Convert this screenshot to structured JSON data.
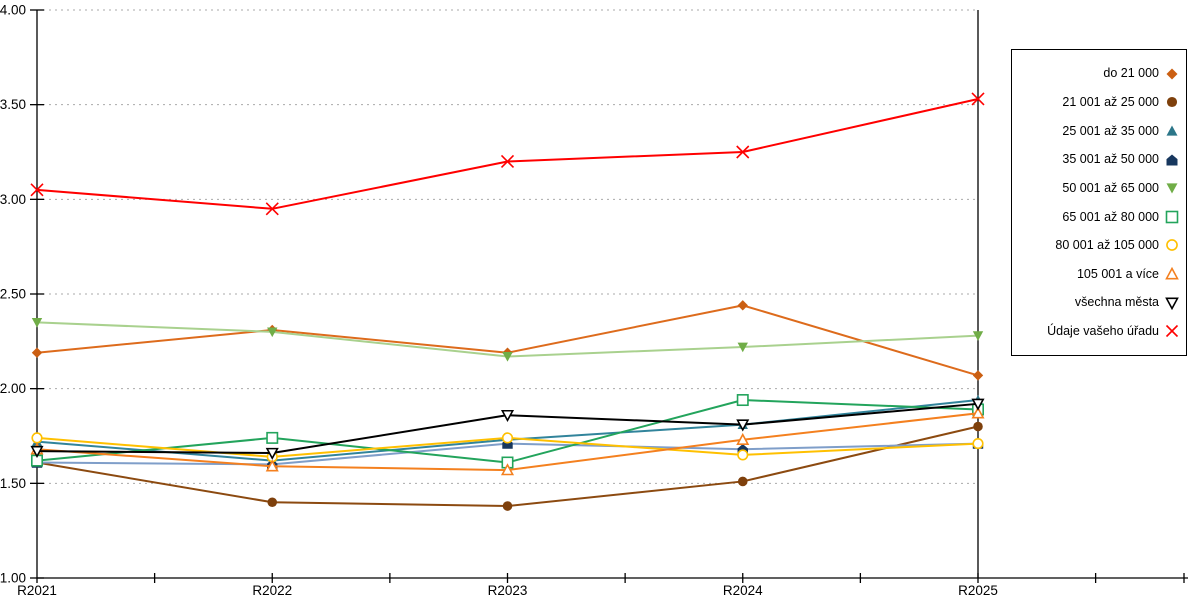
{
  "chart_data": {
    "type": "line",
    "title": "",
    "xlabel": "",
    "ylabel": "",
    "categories": [
      "R2021",
      "R2022",
      "R2023",
      "R2024",
      "R2025"
    ],
    "ylim": [
      1.0,
      4.0
    ],
    "ytick_step": 0.5,
    "ytick_labels": [
      "4.00",
      "3.50",
      "3.00",
      "2.50",
      "2.00",
      "1.50",
      "1.00"
    ],
    "grid": "horizontal-dotted",
    "legend_position": "right",
    "series": [
      {
        "name": "do 21 000",
        "marker": "diamond-filled",
        "color": "#DD6B1C",
        "marker_color": "#CB5F12",
        "values": [
          2.19,
          2.31,
          2.19,
          2.44,
          2.07
        ]
      },
      {
        "name": "21 001 až 25 000",
        "marker": "circle-filled",
        "color": "#8C4A10",
        "marker_color": "#7E400C",
        "values": [
          1.61,
          1.4,
          1.38,
          1.51,
          1.8
        ]
      },
      {
        "name": "25 001 až 35 000",
        "marker": "triangle-up-filled",
        "color": "#31849B",
        "marker_color": "#2C7689",
        "values": [
          1.72,
          1.62,
          1.73,
          1.81,
          1.94
        ]
      },
      {
        "name": "35 001 až 50 000",
        "marker": "pentagon-filled",
        "color": "#7F9EC9",
        "marker_color": "#17375E",
        "values": [
          1.61,
          1.6,
          1.71,
          1.68,
          1.71
        ]
      },
      {
        "name": "50 001 až 65 000",
        "marker": "triangle-down-filled",
        "color": "#A9D18E",
        "marker_color": "#70AD47",
        "values": [
          2.35,
          2.3,
          2.17,
          2.22,
          2.28
        ]
      },
      {
        "name": "65 001 až 80 000",
        "marker": "square-open",
        "color": "#23A45C",
        "marker_color": "#23A45C",
        "values": [
          1.62,
          1.74,
          1.61,
          1.94,
          1.89
        ]
      },
      {
        "name": "80 001 až 105 000",
        "marker": "circle-open",
        "color": "#FFC000",
        "marker_color": "#FFC000",
        "values": [
          1.74,
          1.64,
          1.74,
          1.65,
          1.71
        ]
      },
      {
        "name": "105 001 a více",
        "marker": "triangle-up-open",
        "color": "#F4801F",
        "marker_color": "#F4801F",
        "values": [
          1.68,
          1.59,
          1.57,
          1.73,
          1.87
        ]
      },
      {
        "name": "všechna města",
        "marker": "triangle-down-open",
        "color": "#000000",
        "marker_color": "#000000",
        "values": [
          1.67,
          1.66,
          1.86,
          1.81,
          1.92
        ]
      },
      {
        "name": "Údaje vašeho úřadu",
        "marker": "x",
        "color": "#FF0000",
        "marker_color": "#FF0000",
        "values": [
          3.05,
          2.95,
          3.2,
          3.25,
          3.53
        ]
      }
    ],
    "colors": {
      "axis": "#000000",
      "gridline": "#AAAAAA",
      "tick_label": "#000000"
    }
  }
}
